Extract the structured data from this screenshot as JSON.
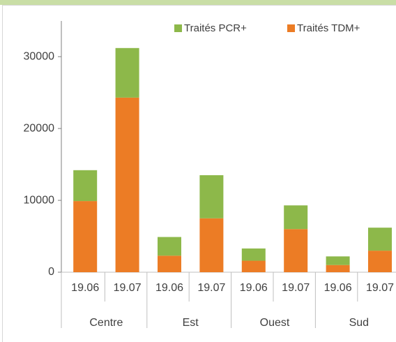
{
  "chart_data": {
    "type": "stacked_bar",
    "categories": [
      "19.06",
      "19.07",
      "19.06",
      "19.07",
      "19.06",
      "19.07",
      "19.06",
      "19.07"
    ],
    "groups": [
      "Centre",
      "Est",
      "Ouest",
      "Sud"
    ],
    "series": [
      {
        "name": "Traités PCR+",
        "color": "#8db84a",
        "values": [
          4300,
          6900,
          2600,
          6000,
          1700,
          3300,
          1200,
          3200
        ]
      },
      {
        "name": "Traités TDM+",
        "color": "#ec7c25",
        "values": [
          9900,
          24300,
          2300,
          7500,
          1600,
          6000,
          1000,
          3000
        ]
      }
    ],
    "stack_order": [
      1,
      0
    ],
    "ylim": [
      0,
      34000
    ],
    "yticks": [
      0,
      10000,
      20000,
      30000
    ],
    "grid": false,
    "legend": "top-right"
  }
}
